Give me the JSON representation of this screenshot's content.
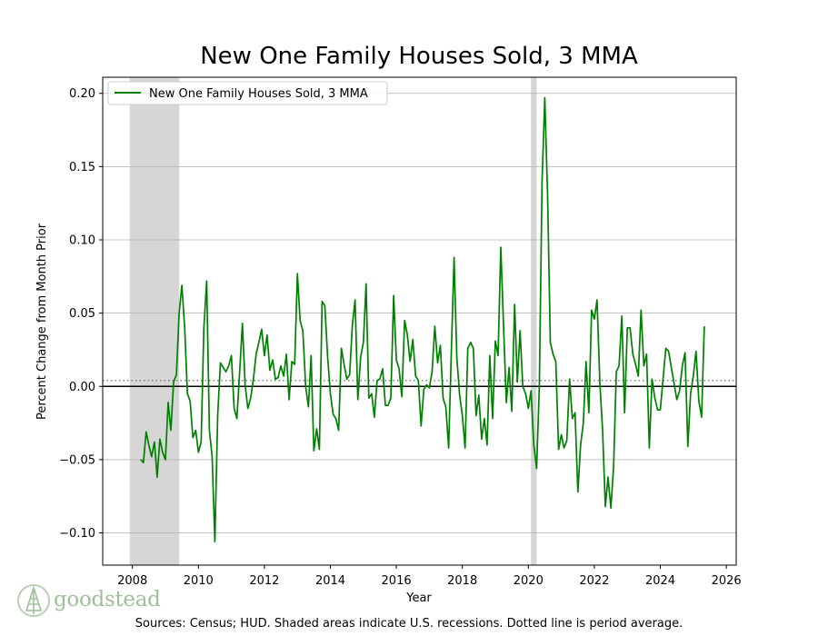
{
  "chart_data": {
    "type": "line",
    "title": "New One Family Houses Sold, 3 MMA",
    "xlabel": "Year",
    "ylabel": "Percent Change from Month Prior",
    "xlim": [
      2007.1,
      2026.3
    ],
    "ylim": [
      -0.122,
      0.211
    ],
    "x_ticks": [
      2008,
      2010,
      2012,
      2014,
      2016,
      2018,
      2020,
      2022,
      2024,
      2026
    ],
    "y_ticks": [
      -0.1,
      -0.05,
      0.0,
      0.05,
      0.1,
      0.15,
      0.2
    ],
    "y_tick_labels": [
      "−0.10",
      "−0.05",
      "0.00",
      "0.05",
      "0.10",
      "0.15",
      "0.20"
    ],
    "average_line": 0.004,
    "zero_line": 0.0,
    "grid": "horizontal",
    "legend_position": "top-left",
    "recessions": [
      {
        "start": 2007.92,
        "end": 2009.42
      },
      {
        "start": 2020.08,
        "end": 2020.25
      }
    ],
    "series": [
      {
        "name": "New One Family Houses Sold, 3 MMA",
        "color": "#008000",
        "start": 2008.25,
        "step_months": 1,
        "values": [
          -0.05,
          -0.052,
          -0.031,
          -0.04,
          -0.048,
          -0.038,
          -0.062,
          -0.036,
          -0.045,
          -0.05,
          -0.011,
          -0.03,
          0.003,
          0.008,
          0.05,
          0.069,
          0.04,
          -0.005,
          -0.01,
          -0.035,
          -0.03,
          -0.045,
          -0.038,
          0.04,
          0.072,
          -0.03,
          -0.048,
          -0.106,
          -0.02,
          0.016,
          0.013,
          0.01,
          0.014,
          0.021,
          -0.015,
          -0.022,
          0.01,
          0.043,
          0.001,
          -0.015,
          -0.008,
          0.005,
          0.022,
          0.03,
          0.039,
          0.021,
          0.035,
          0.011,
          0.018,
          0.005,
          0.006,
          0.014,
          0.007,
          0.022,
          -0.009,
          0.017,
          0.015,
          0.077,
          0.045,
          0.038,
          0.0,
          -0.014,
          0.021,
          -0.044,
          -0.029,
          -0.043,
          0.058,
          0.055,
          0.02,
          -0.005,
          -0.019,
          -0.022,
          -0.03,
          0.026,
          0.015,
          0.005,
          0.008,
          0.042,
          0.059,
          -0.009,
          0.02,
          0.03,
          0.07,
          -0.008,
          -0.005,
          -0.021,
          0.004,
          0.005,
          0.012,
          -0.013,
          -0.013,
          -0.008,
          0.062,
          0.018,
          0.012,
          -0.007,
          0.045,
          0.035,
          0.017,
          0.032,
          0.007,
          0.004,
          -0.027,
          -0.002,
          0.001,
          -0.001,
          0.01,
          0.041,
          0.016,
          0.028,
          -0.008,
          -0.014,
          -0.042,
          0.024,
          0.088,
          0.02,
          -0.006,
          -0.02,
          -0.042,
          0.026,
          0.03,
          0.026,
          -0.02,
          -0.006,
          -0.036,
          -0.022,
          -0.04,
          0.021,
          -0.022,
          0.031,
          0.021,
          0.095,
          0.04,
          -0.011,
          0.013,
          -0.017,
          0.056,
          0.003,
          0.038,
          0.0,
          -0.005,
          -0.015,
          -0.003,
          -0.04,
          -0.056,
          0.0,
          0.14,
          0.197,
          0.13,
          0.03,
          0.022,
          0.017,
          -0.043,
          -0.033,
          -0.042,
          -0.037,
          0.005,
          -0.022,
          -0.018,
          -0.072,
          -0.04,
          -0.025,
          0.017,
          -0.018,
          0.052,
          0.046,
          0.059,
          0.002,
          -0.03,
          -0.082,
          -0.062,
          -0.083,
          -0.055,
          0.01,
          0.014,
          0.048,
          -0.018,
          0.04,
          0.04,
          0.022,
          0.015,
          0.007,
          0.052,
          0.014,
          0.022,
          -0.042,
          0.005,
          -0.008,
          -0.016,
          -0.016,
          0.005,
          0.026,
          0.024,
          0.013,
          0.002,
          -0.009,
          -0.003,
          0.014,
          0.023,
          -0.041,
          -0.005,
          0.007,
          0.024,
          -0.01,
          -0.021,
          0.041
        ]
      }
    ]
  },
  "footer": {
    "sources": "Sources: Census; HUD. Shaded areas indicate U.S. recessions. Dotted line is period average."
  },
  "logo": {
    "text": "goodstead",
    "color": "#9fbf9a"
  }
}
